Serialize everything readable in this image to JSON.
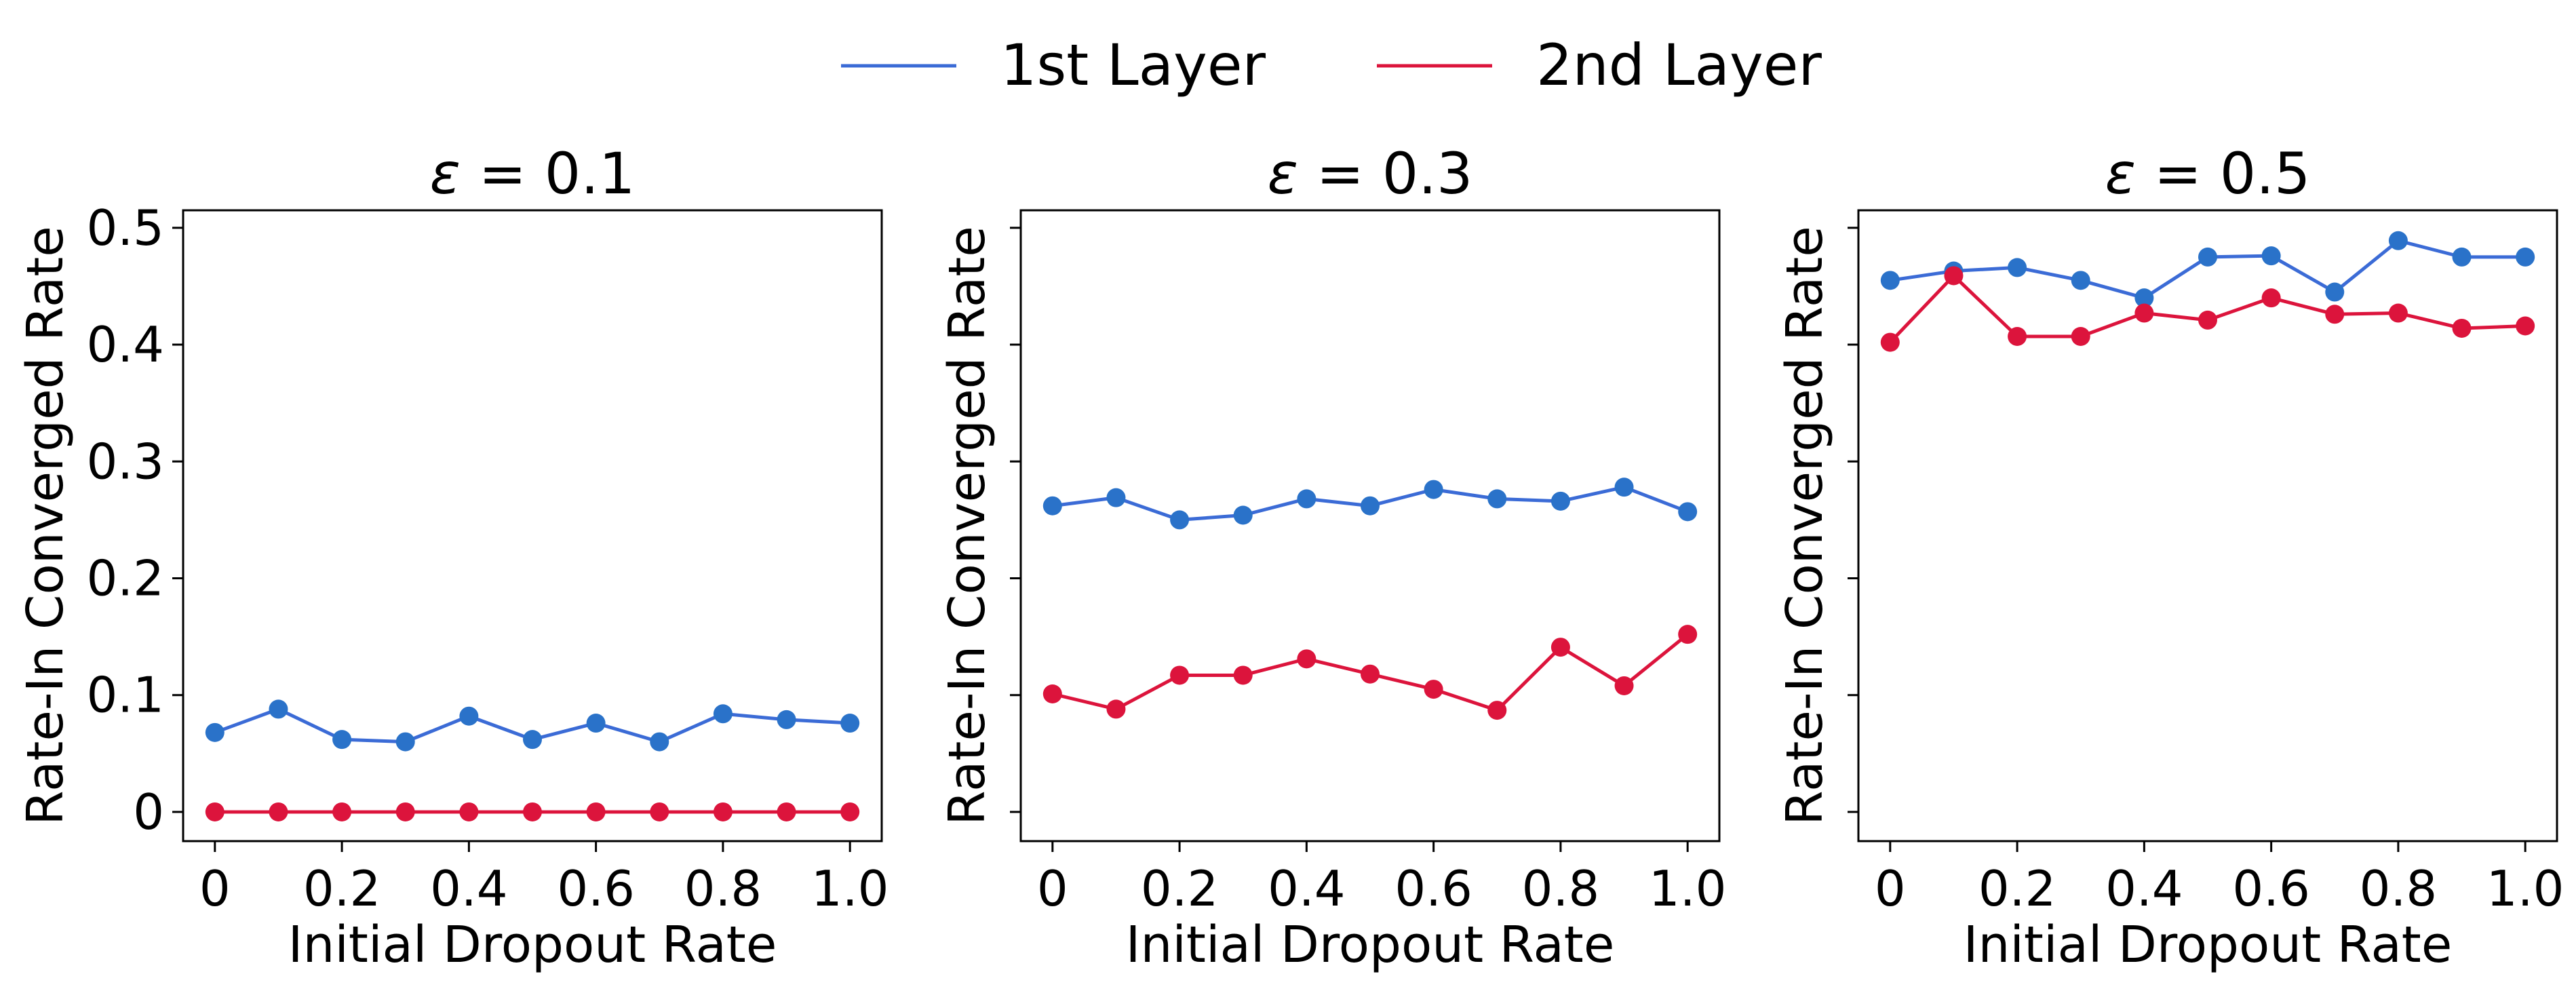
{
  "legend": {
    "entries": [
      {
        "label": "1st Layer",
        "color": "#3b6bd6"
      },
      {
        "label": "2nd Layer",
        "color": "#dc143c"
      }
    ],
    "position": "top-center"
  },
  "marker_colors": {
    "1st Layer": "#2a72c9",
    "2nd Layer": "#dc143c"
  },
  "chart_data": [
    {
      "type": "line",
      "title_prefix": "ε",
      "title": "= 0.1",
      "xlabel": "Initial Dropout Rate",
      "ylabel": "Rate-In Converged Rate",
      "xlim": [
        -0.05,
        1.05
      ],
      "ylim": [
        -0.025,
        0.515
      ],
      "x_ticks": [
        0,
        0.2,
        0.4,
        0.6,
        0.8,
        1.0
      ],
      "x_tick_labels": [
        "0",
        "0.2",
        "0.4",
        "0.6",
        "0.8",
        "1.0"
      ],
      "y_ticks": [
        0,
        0.1,
        0.2,
        0.3,
        0.4,
        0.5
      ],
      "y_tick_labels": [
        "0",
        "0.1",
        "0.2",
        "0.3",
        "0.4",
        "0.5"
      ],
      "show_y_tick_labels": true,
      "grid": false,
      "x": [
        0,
        0.1,
        0.2,
        0.3,
        0.4,
        0.5,
        0.6,
        0.7,
        0.8,
        0.9,
        1.0
      ],
      "series": [
        {
          "name": "1st Layer",
          "values": [
            0.068,
            0.088,
            0.062,
            0.06,
            0.082,
            0.062,
            0.076,
            0.06,
            0.084,
            0.079,
            0.076
          ]
        },
        {
          "name": "2nd Layer",
          "values": [
            0,
            0,
            0,
            0,
            0,
            0,
            0,
            0,
            0,
            0,
            0
          ]
        }
      ]
    },
    {
      "type": "line",
      "title_prefix": "ε",
      "title": "= 0.3",
      "xlabel": "Initial Dropout Rate",
      "ylabel": "Rate-In Converged Rate",
      "xlim": [
        -0.05,
        1.05
      ],
      "ylim": [
        -0.025,
        0.515
      ],
      "x_ticks": [
        0,
        0.2,
        0.4,
        0.6,
        0.8,
        1.0
      ],
      "x_tick_labels": [
        "0",
        "0.2",
        "0.4",
        "0.6",
        "0.8",
        "1.0"
      ],
      "y_ticks": [
        0,
        0.1,
        0.2,
        0.3,
        0.4,
        0.5
      ],
      "y_tick_labels": [],
      "show_y_tick_labels": false,
      "grid": false,
      "x": [
        0,
        0.1,
        0.2,
        0.3,
        0.4,
        0.5,
        0.6,
        0.7,
        0.8,
        0.9,
        1.0
      ],
      "series": [
        {
          "name": "1st Layer",
          "values": [
            0.262,
            0.269,
            0.25,
            0.254,
            0.268,
            0.262,
            0.276,
            0.268,
            0.266,
            0.278,
            0.257
          ]
        },
        {
          "name": "2nd Layer",
          "values": [
            0.101,
            0.088,
            0.117,
            0.117,
            0.131,
            0.118,
            0.105,
            0.087,
            0.141,
            0.108,
            0.152
          ]
        }
      ]
    },
    {
      "type": "line",
      "title_prefix": "ε",
      "title": "= 0.5",
      "xlabel": "Initial Dropout Rate",
      "ylabel": "Rate-In Converged Rate",
      "xlim": [
        -0.05,
        1.05
      ],
      "ylim": [
        -0.025,
        0.515
      ],
      "x_ticks": [
        0,
        0.2,
        0.4,
        0.6,
        0.8,
        1.0
      ],
      "x_tick_labels": [
        "0",
        "0.2",
        "0.4",
        "0.6",
        "0.8",
        "1.0"
      ],
      "y_ticks": [
        0,
        0.1,
        0.2,
        0.3,
        0.4,
        0.5
      ],
      "y_tick_labels": [],
      "show_y_tick_labels": false,
      "grid": false,
      "x": [
        0,
        0.1,
        0.2,
        0.3,
        0.4,
        0.5,
        0.6,
        0.7,
        0.8,
        0.9,
        1.0
      ],
      "series": [
        {
          "name": "1st Layer",
          "values": [
            0.455,
            0.463,
            0.466,
            0.455,
            0.44,
            0.475,
            0.476,
            0.445,
            0.489,
            0.475,
            0.475
          ]
        },
        {
          "name": "2nd Layer",
          "values": [
            0.402,
            0.459,
            0.407,
            0.407,
            0.427,
            0.421,
            0.44,
            0.426,
            0.427,
            0.414,
            0.416
          ]
        }
      ]
    }
  ]
}
